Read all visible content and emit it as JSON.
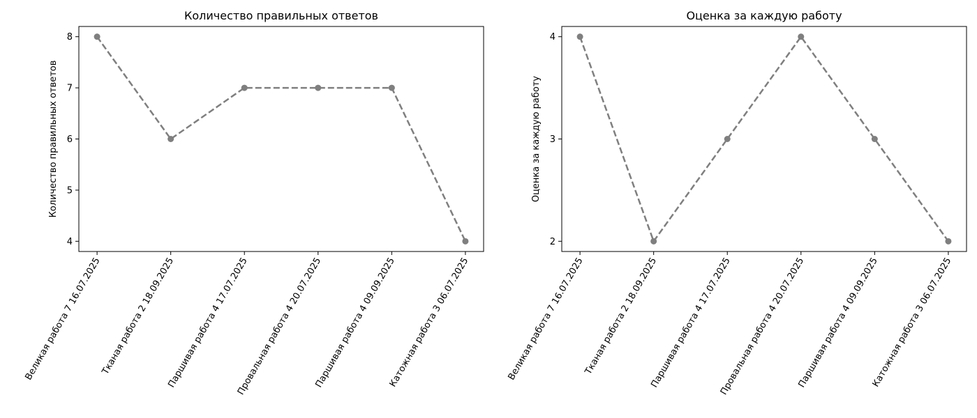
{
  "chart_data": [
    {
      "type": "line",
      "title": "Количество правильных ответов",
      "xlabel": "",
      "ylabel": "Количество правильных ответов",
      "categories": [
        "Великая работа 7 16.07.2025",
        "Тканая работа 2 18.09.2025",
        "Паршивая работа 4 17.07.2025",
        "Провальная работа 4 20.07.2025",
        "Паршивая работа 4 09.09.2025",
        "Катожная работа 3 06.07.2025"
      ],
      "values": [
        8,
        6,
        7,
        7,
        7,
        4
      ],
      "yticks": [
        "4",
        "5",
        "6",
        "7",
        "8"
      ],
      "ylim": [
        3.8,
        8.2
      ],
      "grid": false,
      "line_style": "dashed",
      "marker": "circle",
      "color": "#7f7f7f"
    },
    {
      "type": "line",
      "title": "Оценка за каждую работу",
      "xlabel": "",
      "ylabel": "Оценка за каждую работу",
      "categories": [
        "Великая работа 7 16.07.2025",
        "Тканая работа 2 18.09.2025",
        "Паршивая работа 4 17.07.2025",
        "Провальная работа 4 20.07.2025",
        "Паршивая работа 4 09.09.2025",
        "Катожная работа 3 06.07.2025"
      ],
      "values": [
        4,
        2,
        3,
        4,
        3,
        2
      ],
      "yticks": [
        "2",
        "3",
        "4"
      ],
      "ylim": [
        1.9,
        4.1
      ],
      "grid": false,
      "line_style": "dashed",
      "marker": "circle",
      "color": "#7f7f7f"
    }
  ]
}
